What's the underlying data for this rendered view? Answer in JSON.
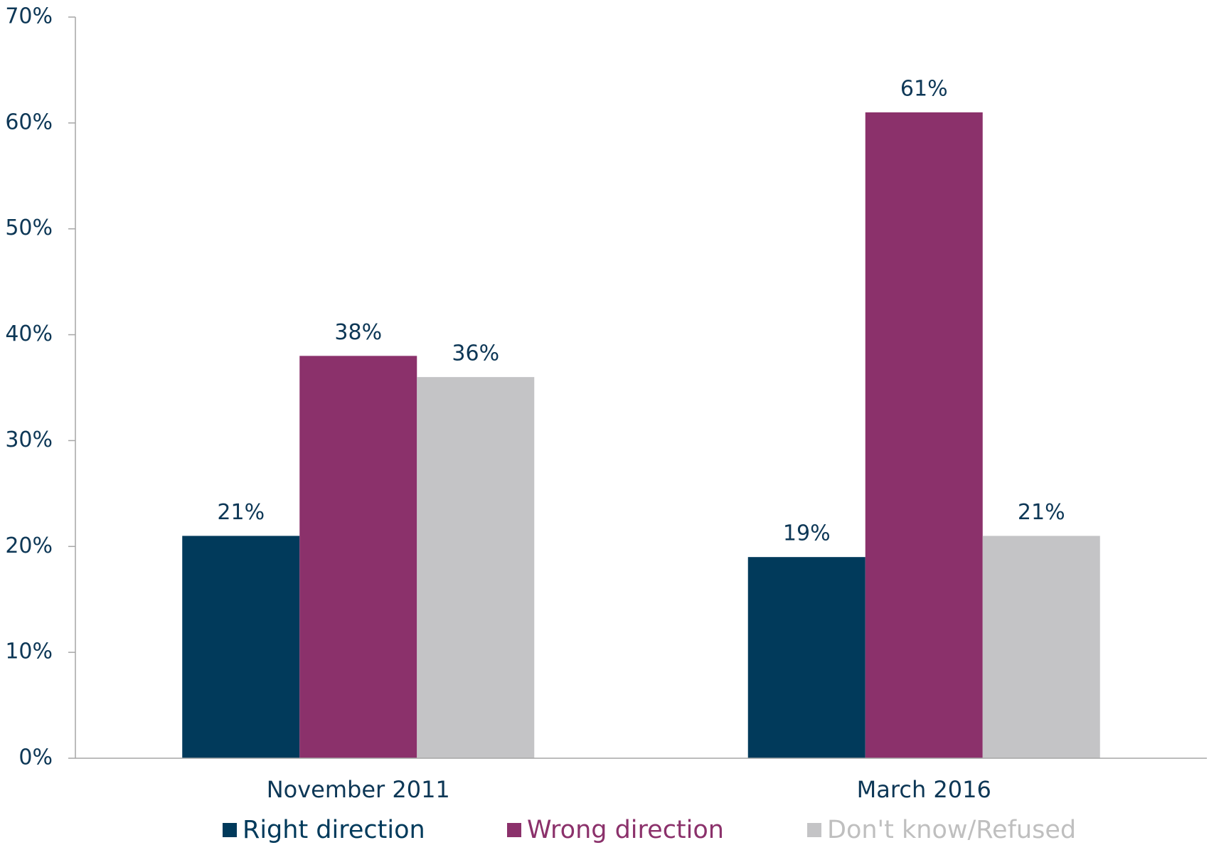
{
  "chart_data": {
    "type": "bar",
    "categories": [
      "November 2011",
      "March 2016"
    ],
    "series": [
      {
        "name": "Right direction",
        "color": "#013a5b",
        "values": [
          21,
          19
        ],
        "value_labels": [
          "21%",
          "19%"
        ]
      },
      {
        "name": "Wrong direction",
        "color": "#8b316b",
        "values": [
          38,
          61
        ],
        "value_labels": [
          "38%",
          "61%"
        ]
      },
      {
        "name": "Don't know/Refused",
        "color": "#c4c4c6",
        "values": [
          36,
          21
        ],
        "value_labels": [
          "36%",
          "21%"
        ]
      }
    ],
    "ylim": [
      0,
      70
    ],
    "yticks": [
      {
        "value": 0,
        "label": "0%"
      },
      {
        "value": 10,
        "label": "10%"
      },
      {
        "value": 20,
        "label": "20%"
      },
      {
        "value": 30,
        "label": "30%"
      },
      {
        "value": 40,
        "label": "40%"
      },
      {
        "value": 50,
        "label": "50%"
      },
      {
        "value": 60,
        "label": "60%"
      },
      {
        "value": 70,
        "label": "70%"
      }
    ],
    "legend": "bottom"
  }
}
